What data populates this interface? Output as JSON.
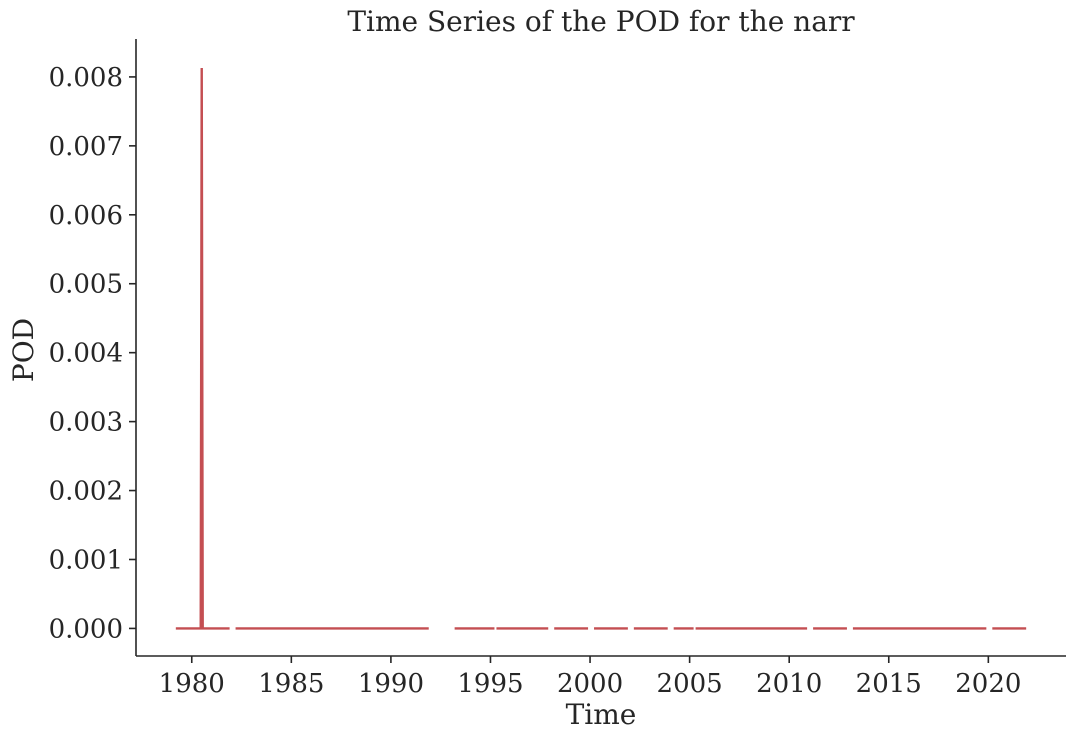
{
  "chart_data": {
    "type": "line",
    "title": "Time Series of the POD for the narr",
    "xlabel": "Time",
    "ylabel": "POD",
    "xlim": [
      1977.2,
      2023.9
    ],
    "ylim": [
      -0.0004,
      0.00855
    ],
    "x_ticks": [
      1980,
      1985,
      1990,
      1995,
      2000,
      2005,
      2010,
      2015,
      2020
    ],
    "x_tick_labels": [
      "1980",
      "1985",
      "1990",
      "1995",
      "2000",
      "2005",
      "2010",
      "2015",
      "2020"
    ],
    "y_ticks": [
      0,
      0.001,
      0.002,
      0.003,
      0.004,
      0.005,
      0.006,
      0.007,
      0.008
    ],
    "y_tick_labels": [
      "0.000",
      "0.001",
      "0.002",
      "0.003",
      "0.004",
      "0.005",
      "0.006",
      "0.007",
      "0.008"
    ],
    "grid": false,
    "series": [
      {
        "color": "#c44e52",
        "segments": [
          {
            "x": [
              1979.2,
              1980.45,
              1980.5,
              1980.55,
              1981.9
            ],
            "y": [
              0,
              0,
              0.00813,
              0,
              0
            ]
          },
          {
            "x": [
              1982.2,
              1991.9
            ],
            "y": [
              0,
              0
            ]
          },
          {
            "x": [
              1993.2,
              1995.2
            ],
            "y": [
              0,
              0
            ]
          },
          {
            "x": [
              1995.3,
              1997.9
            ],
            "y": [
              0,
              0
            ]
          },
          {
            "x": [
              1998.2,
              1999.9
            ],
            "y": [
              0,
              0
            ]
          },
          {
            "x": [
              2000.2,
              2001.9
            ],
            "y": [
              0,
              0
            ]
          },
          {
            "x": [
              2002.2,
              2003.9
            ],
            "y": [
              0,
              0
            ]
          },
          {
            "x": [
              2004.2,
              2005.2
            ],
            "y": [
              0,
              0
            ]
          },
          {
            "x": [
              2005.3,
              2010.9
            ],
            "y": [
              0,
              0
            ]
          },
          {
            "x": [
              2011.2,
              2012.9
            ],
            "y": [
              0,
              0
            ]
          },
          {
            "x": [
              2013.2,
              2019.9
            ],
            "y": [
              0,
              0
            ]
          },
          {
            "x": [
              2020.2,
              2021.9
            ],
            "y": [
              0,
              0
            ]
          }
        ]
      }
    ]
  }
}
